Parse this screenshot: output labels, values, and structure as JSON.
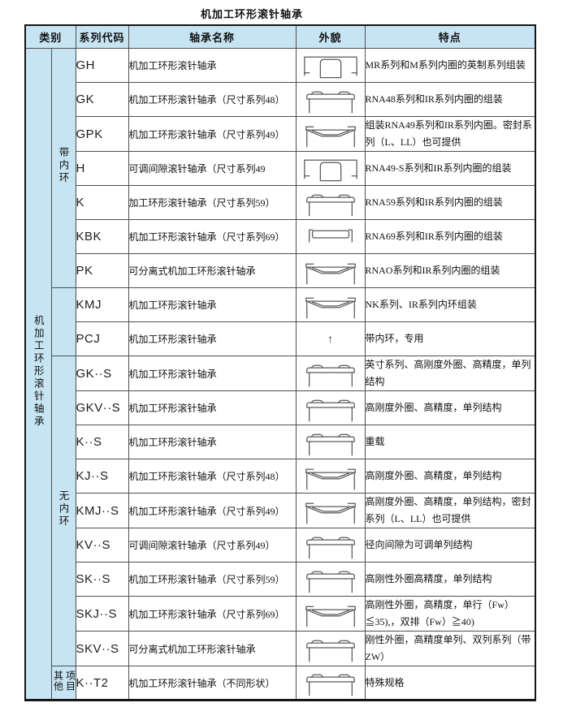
{
  "page": {
    "title": "机加工环形滚针轴承"
  },
  "icons": {
    "arrow_up": "↑"
  },
  "colors": {
    "header_bg": "#c7e4f3",
    "border_outer": "#161616",
    "border_inner": "#4f4f4f",
    "diagram_stroke": "#5a5a5a"
  },
  "table": {
    "headers": {
      "category": "类别",
      "code": "系列代码",
      "name": "轴承名称",
      "appearance": "外貌",
      "features": "特点"
    },
    "main_category": "机加工环形滚针轴承",
    "groups": [
      {
        "label": "带内环",
        "start": 0,
        "count": 7
      },
      {
        "label": "",
        "start": 7,
        "count": 2
      },
      {
        "label": "无内环",
        "start": 9,
        "count": 9
      },
      {
        "label": "其他\n项目",
        "start": 18,
        "count": 1
      }
    ],
    "rows": [
      {
        "code": "GH",
        "name": "机加工环形滚针轴承",
        "diagram": "inner-ring",
        "features": "MR系列和M系列内圈的英制系列组装"
      },
      {
        "code": "GK",
        "name": "机加工环形滚针轴承（尺寸系列48）",
        "diagram": "cap",
        "features": "RNA48系列和IR系列内圈的组装"
      },
      {
        "code": "GPK",
        "name": "机加工环形滚针轴承（尺寸系列49）",
        "diagram": "sealed-chevron",
        "features": "组装RNA49系列和IR系列内圈。密封系列（L、LL）也可提供"
      },
      {
        "code": "H",
        "name": "可调间隙滚针轴承（尺寸系列49",
        "diagram": "inner-ring",
        "features": "RNA49-S系列和IR系列内圈的组装"
      },
      {
        "code": "K",
        "name": "加工环形滚针轴承（尺寸系列59）",
        "diagram": "cap",
        "features": "RNA59系列和IR系列内圈的组装"
      },
      {
        "code": "KBK",
        "name": "机加工环形滚针轴承（尺寸系列69）",
        "diagram": "bar",
        "features": "RNA69系列和IR系列内圈的组装"
      },
      {
        "code": "PK",
        "name": "可分离式机加工环形滚针轴承",
        "diagram": "sealed-chevron",
        "features": "RNAO系列和IR系列内圈的组装"
      },
      {
        "code": "KMJ",
        "name": "机加工环形滚针轴承",
        "diagram": "sealed-chevron",
        "features": "NK系列、IR系列内环组装"
      },
      {
        "code": "PCJ",
        "name": "机加工环形滚针轴承",
        "diagram": "arrow-up",
        "features": "带内环，专用"
      },
      {
        "code": "GK··S",
        "name": "机加工环形滚针轴承",
        "diagram": "cap",
        "features": "英寸系列、高刚度外圈、高精度，单列结构"
      },
      {
        "code": "GKV··S",
        "name": "机加工环形滚针轴承",
        "diagram": "cap",
        "features": "高刚度外圈、高精度，单列结构"
      },
      {
        "code": "K··S",
        "name": "机加工环形滚针轴承",
        "diagram": "cap",
        "features": "重载"
      },
      {
        "code": "KJ··S",
        "name": "机加工环形滚针轴承（尺寸系列48）",
        "diagram": "sealed-chevron",
        "features": "高刚度外圈、高精度，单列结构"
      },
      {
        "code": "KMJ··S",
        "name": "机加工环形滚针轴承（尺寸系列49）",
        "diagram": "sealed-chevron",
        "features": "高刚度外圈、高精度，单列结构，密封系列（L、LL）也可提供"
      },
      {
        "code": "KV··S",
        "name": "可调间隙滚针轴承（尺寸系列49）",
        "diagram": "cap",
        "features": "径向间隙为可调单列结构"
      },
      {
        "code": "SK··S",
        "name": "机加工环形滚针轴承（尺寸系列59）",
        "diagram": "cap",
        "features": "高刚性外圈高精度，单列结构"
      },
      {
        "code": "SKJ··S",
        "name": "机加工环形滚针轴承（尺寸系列69）",
        "diagram": "sealed-chevron",
        "features": "高刚性外圈，高精度，单行（Fw）≦35),，双排（Fw）≧40)"
      },
      {
        "code": "SKV··S",
        "name": "可分离式机加工环形滚针轴承",
        "diagram": "cap",
        "features": "刚性外圈，高精度单列、双列系列（带ZW）"
      },
      {
        "code": "K··T2",
        "name": "机加工环形滚针轴承（不同形状）",
        "diagram": "cap",
        "features": "特殊规格"
      }
    ]
  }
}
